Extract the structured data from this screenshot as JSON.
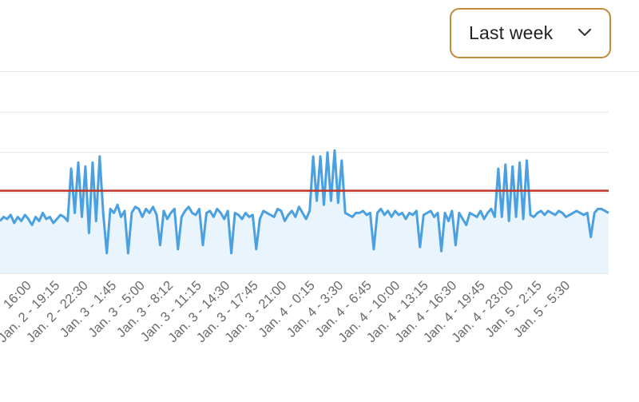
{
  "filter": {
    "range_label": "Last week"
  },
  "colors": {
    "series": "#4aa0e0",
    "series_fill": "#eaf4fd",
    "threshold": "#c2352b",
    "grid": "#e3e3e3",
    "select_border": "#c28a3a"
  },
  "chart_data": {
    "type": "area",
    "title": "",
    "xlabel": "",
    "ylabel": "",
    "ylim": [
      0,
      100
    ],
    "grid": true,
    "threshold": 41,
    "x_ticks": [
      "16:00",
      "Jan. 2 - 19:15",
      "Jan. 2 - 22:30",
      "Jan. 3 - 1:45",
      "Jan. 3 - 5:00",
      "Jan. 3 - 8:12",
      "Jan. 3 - 11:15",
      "Jan. 3 - 14:30",
      "Jan. 3 - 17:45",
      "Jan. 3 - 21:00",
      "Jan. 4 - 0:15",
      "Jan. 4 - 3:30",
      "Jan. 4 - 6:45",
      "Jan. 4 - 10:00",
      "Jan. 4 - 13:15",
      "Jan. 4 - 16:30",
      "Jan. 4 - 19:45",
      "Jan. 4 - 23:00",
      "Jan. 5 - 2:15",
      "Jan. 5 - 5:30"
    ],
    "values": [
      26,
      28,
      27,
      29,
      25,
      28,
      26,
      29,
      27,
      24,
      28,
      26,
      30,
      27,
      28,
      25,
      27,
      29,
      28,
      26,
      52,
      30,
      55,
      28,
      53,
      20,
      55,
      26,
      58,
      30,
      10,
      32,
      30,
      34,
      28,
      31,
      10,
      30,
      33,
      32,
      28,
      32,
      30,
      33,
      29,
      14,
      31,
      27,
      30,
      32,
      12,
      28,
      31,
      33,
      30,
      29,
      32,
      14,
      30,
      31,
      28,
      32,
      30,
      27,
      31,
      10,
      30,
      29,
      27,
      30,
      28,
      29,
      12,
      27,
      31,
      30,
      29,
      28,
      32,
      31,
      26,
      29,
      31,
      28,
      33,
      30,
      27,
      31,
      58,
      36,
      58,
      34,
      60,
      36,
      61,
      35,
      56,
      30,
      29,
      28,
      30,
      30,
      31,
      29,
      30,
      12,
      30,
      32,
      29,
      31,
      28,
      31,
      29,
      30,
      27,
      30,
      29,
      31,
      13,
      29,
      30,
      31,
      28,
      30,
      11,
      30,
      26,
      31,
      14,
      30,
      27,
      24,
      30,
      29,
      28,
      31,
      27,
      30,
      32,
      28,
      52,
      28,
      54,
      26,
      53,
      28,
      55,
      27,
      56,
      29,
      28,
      30,
      31,
      29,
      31,
      30,
      29,
      31,
      30,
      28,
      29,
      30,
      31,
      30,
      29,
      30,
      18,
      30,
      32,
      32,
      31,
      30
    ]
  }
}
